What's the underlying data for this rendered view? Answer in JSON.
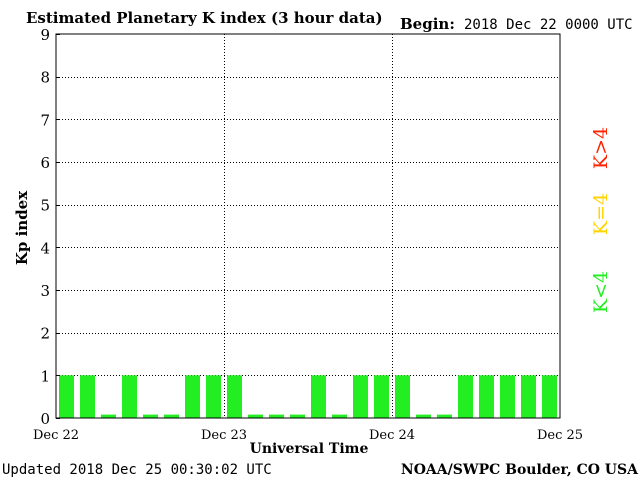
{
  "header": {
    "title": "Estimated Planetary K index (3 hour data)",
    "begin_label": "Begin:",
    "begin_value": "2018 Dec 22 0000 UTC"
  },
  "footer": {
    "updated": "Updated 2018 Dec 25 00:30:02 UTC",
    "source": "NOAA/SWPC Boulder, CO USA"
  },
  "legend": {
    "high": "K>4",
    "mid": "K=4",
    "low": "K<4",
    "colors": {
      "high": "#ff2200",
      "mid": "#ffd400",
      "low": "#22ee22"
    }
  },
  "chart_data": {
    "type": "bar",
    "title": "Estimated Planetary K index (3 hour data)",
    "xlabel": "Universal Time",
    "ylabel": "Kp index",
    "ylim": [
      0,
      9
    ],
    "y_ticks": [
      "0",
      "1",
      "2",
      "3",
      "4",
      "5",
      "6",
      "7",
      "8",
      "9"
    ],
    "x_ticks": [
      "Dec 22",
      "Dec 23",
      "Dec 24",
      "Dec 25"
    ],
    "grid": true,
    "bar_color": "#22ee22",
    "values": [
      1,
      1,
      0,
      1,
      0,
      0,
      1,
      1,
      1,
      0,
      0,
      0,
      1,
      0,
      1,
      1,
      1,
      0,
      0,
      1,
      1,
      1,
      1,
      1
    ]
  }
}
